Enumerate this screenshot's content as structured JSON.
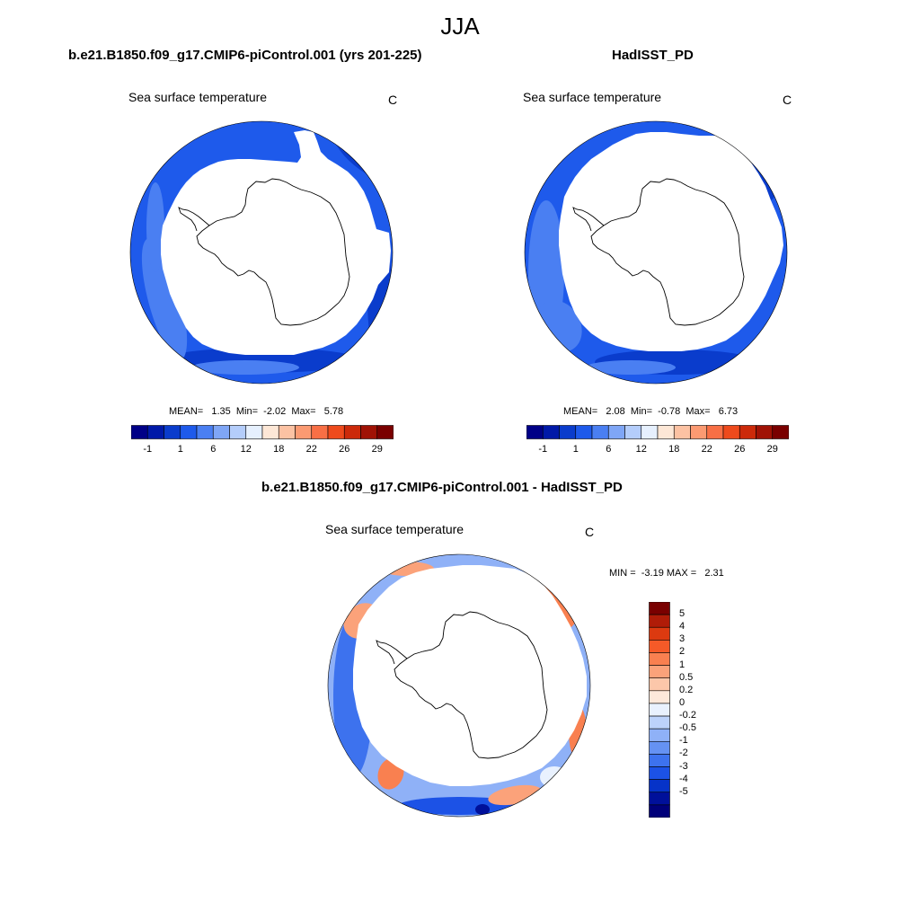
{
  "figure": {
    "title": "JJA"
  },
  "panels": [
    {
      "title": "b.e21.B1850.f09_g17.CMIP6-piControl.001 (yrs 201-225)",
      "variable": "Sea surface temperature",
      "units": "C",
      "stats": "MEAN=   1.35  Min=  -2.02  Max=   5.78",
      "colorbar_ticks": [
        "-1",
        "1",
        "6",
        "12",
        "18",
        "22",
        "26",
        "29"
      ]
    },
    {
      "title": "HadISST_PD",
      "variable": "Sea surface temperature",
      "units": "C",
      "stats": "MEAN=   2.08  Min=  -0.78  Max=   6.73",
      "colorbar_ticks": [
        "-1",
        "1",
        "6",
        "12",
        "18",
        "22",
        "26",
        "29"
      ]
    },
    {
      "title": "b.e21.B1850.f09_g17.CMIP6-piControl.001 - HadISST_PD",
      "variable": "Sea surface temperature",
      "units": "C",
      "stats": "MIN =  -3.19 MAX =   2.31",
      "colorbar_ticks": [
        "5",
        "4",
        "3",
        "2",
        "1",
        "0.5",
        "0.2",
        "0",
        "-0.2",
        "-0.5",
        "-1",
        "-2",
        "-3",
        "-4",
        "-5"
      ]
    }
  ],
  "colors": {
    "abs_scale": [
      "#000087",
      "#0019a8",
      "#0a3ccc",
      "#1e5aeb",
      "#4a7ff2",
      "#7fa6f6",
      "#b4cdfb",
      "#e6f0fe",
      "#fde7d6",
      "#fcc2a3",
      "#fb9a72",
      "#f86f45",
      "#ee4a1c",
      "#cc2a0a",
      "#a01205",
      "#7a0000"
    ],
    "diff_scale": [
      "#7a0000",
      "#b01c08",
      "#dc3a10",
      "#f55a28",
      "#f98050",
      "#fba27a",
      "#fcc7aa",
      "#fde8da",
      "#e9f1fe",
      "#bcd2fb",
      "#8fb1f7",
      "#6592f3",
      "#3d72ee",
      "#1c52e6",
      "#0633c8",
      "#00109a",
      "#00007a"
    ],
    "land": "#ffffff",
    "coast": "#000000"
  }
}
